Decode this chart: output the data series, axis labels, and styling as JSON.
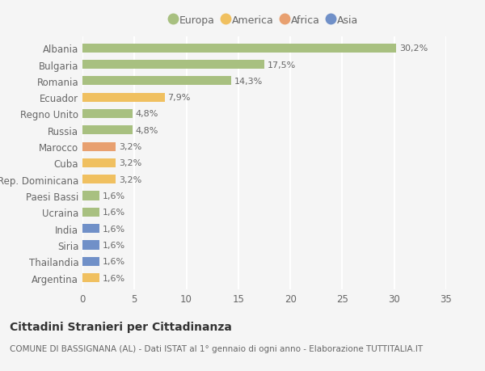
{
  "categories": [
    "Albania",
    "Bulgaria",
    "Romania",
    "Ecuador",
    "Regno Unito",
    "Russia",
    "Marocco",
    "Cuba",
    "Rep. Dominicana",
    "Paesi Bassi",
    "Ucraina",
    "India",
    "Siria",
    "Thailandia",
    "Argentina"
  ],
  "values": [
    30.2,
    17.5,
    14.3,
    7.9,
    4.8,
    4.8,
    3.2,
    3.2,
    3.2,
    1.6,
    1.6,
    1.6,
    1.6,
    1.6,
    1.6
  ],
  "labels": [
    "30,2%",
    "17,5%",
    "14,3%",
    "7,9%",
    "4,8%",
    "4,8%",
    "3,2%",
    "3,2%",
    "3,2%",
    "1,6%",
    "1,6%",
    "1,6%",
    "1,6%",
    "1,6%",
    "1,6%"
  ],
  "continents": [
    "Europa",
    "Europa",
    "Europa",
    "America",
    "Europa",
    "Europa",
    "Africa",
    "America",
    "America",
    "Europa",
    "Europa",
    "Asia",
    "Asia",
    "Asia",
    "America"
  ],
  "continent_colors": {
    "Europa": "#a8c080",
    "America": "#f0c060",
    "Africa": "#e8a070",
    "Asia": "#7090c8"
  },
  "legend_order": [
    "Europa",
    "America",
    "Africa",
    "Asia"
  ],
  "title": "Cittadini Stranieri per Cittadinanza",
  "subtitle": "COMUNE DI BASSIGNANA (AL) - Dati ISTAT al 1° gennaio di ogni anno - Elaborazione TUTTITALIA.IT",
  "xlim": [
    0,
    35
  ],
  "xticks": [
    0,
    5,
    10,
    15,
    20,
    25,
    30,
    35
  ],
  "background_color": "#f5f5f5",
  "grid_color": "#ffffff",
  "bar_height": 0.55,
  "title_fontsize": 10,
  "subtitle_fontsize": 7.5,
  "tick_fontsize": 8.5,
  "label_fontsize": 8
}
